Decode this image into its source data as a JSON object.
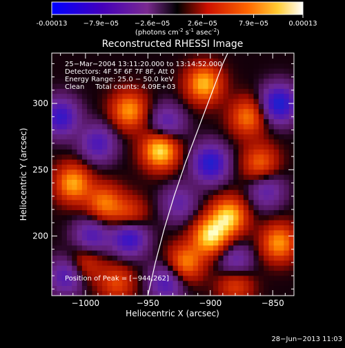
{
  "chart_data": {
    "type": "heatmap",
    "title": "Reconstructed RHESSI Image",
    "colorbar": {
      "unit_label": "(photons cm",
      "unit_sup1": "-2",
      "unit_s": " s",
      "unit_sup2": "-1",
      "unit_asec": " asec",
      "unit_sup3": "-2",
      "unit_close": ")",
      "range": [
        -0.00013,
        0.00013
      ],
      "tick_labels": [
        "-0.00013",
        "−7.9e−05",
        "−2.6e−05",
        "2.6e−05",
        "7.9e−05",
        "0.00013"
      ],
      "tick_values": [
        -0.00013,
        -7.9e-05,
        -2.6e-05,
        2.6e-05,
        7.9e-05,
        0.00013
      ]
    },
    "xlabel": "Heliocentric X (arcsec)",
    "ylabel": "Heliocentric Y (arcsec)",
    "xlim": [
      -1027,
      -833
    ],
    "ylim": [
      155,
      338
    ],
    "x_ticks": [
      -1000,
      -950,
      -900,
      -850
    ],
    "x_tick_labels": [
      "−1000",
      "−950",
      "−900",
      "−850"
    ],
    "y_ticks": [
      200,
      250,
      300
    ],
    "y_tick_labels": [
      "200",
      "250",
      "300"
    ],
    "grid": false,
    "info_lines": [
      "25−Mar−2004 13:11:20.000 to 13:14:52.000",
      "Detectors: 4F 5F 6F 7F 8F, Att 0",
      "Energy Range: 25.0 − 50.0 keV",
      "Clean     Total counts: 4.09E+03"
    ],
    "peak_label": "Position of Peak = [−944,262]",
    "peak": [
      -944,
      262
    ],
    "limb_curve": [
      [
        -950,
        155
      ],
      [
        -944,
        180
      ],
      [
        -937,
        205
      ],
      [
        -929,
        230
      ],
      [
        -920,
        255
      ],
      [
        -910,
        280
      ],
      [
        -900,
        305
      ],
      [
        -890,
        330
      ],
      [
        -886,
        338
      ]
    ],
    "blobs_positive": [
      [
        -940,
        265,
        0.95
      ],
      [
        -965,
        295,
        0.7
      ],
      [
        -1010,
        240,
        0.75
      ],
      [
        -985,
        225,
        0.6
      ],
      [
        -900,
        200,
        0.9
      ],
      [
        -885,
        215,
        0.85
      ],
      [
        -905,
        315,
        0.8
      ],
      [
        -870,
        290,
        0.6
      ],
      [
        -845,
        195,
        0.7
      ],
      [
        -860,
        255,
        0.55
      ],
      [
        -965,
        215,
        0.5
      ],
      [
        -920,
        180,
        0.65
      ],
      [
        -1000,
        180,
        0.4
      ],
      [
        -880,
        165,
        0.5
      ],
      [
        -975,
        165,
        0.45
      ]
    ],
    "blobs_negative": [
      [
        -965,
        200,
        -0.8
      ],
      [
        -1020,
        290,
        -0.7
      ],
      [
        -990,
        270,
        -0.55
      ],
      [
        -995,
        200,
        -0.55
      ],
      [
        -935,
        285,
        -0.5
      ],
      [
        -900,
        255,
        -0.8
      ],
      [
        -925,
        225,
        -0.4
      ],
      [
        -845,
        300,
        -0.85
      ],
      [
        -855,
        235,
        -0.45
      ],
      [
        -1015,
        170,
        -0.55
      ],
      [
        -935,
        165,
        -0.55
      ],
      [
        -880,
        180,
        -0.5
      ]
    ]
  },
  "footer": {
    "timestamp": "28−Jun−2013 11:03"
  },
  "colors": {
    "background": "#000000",
    "foreground": "#ffffff"
  }
}
